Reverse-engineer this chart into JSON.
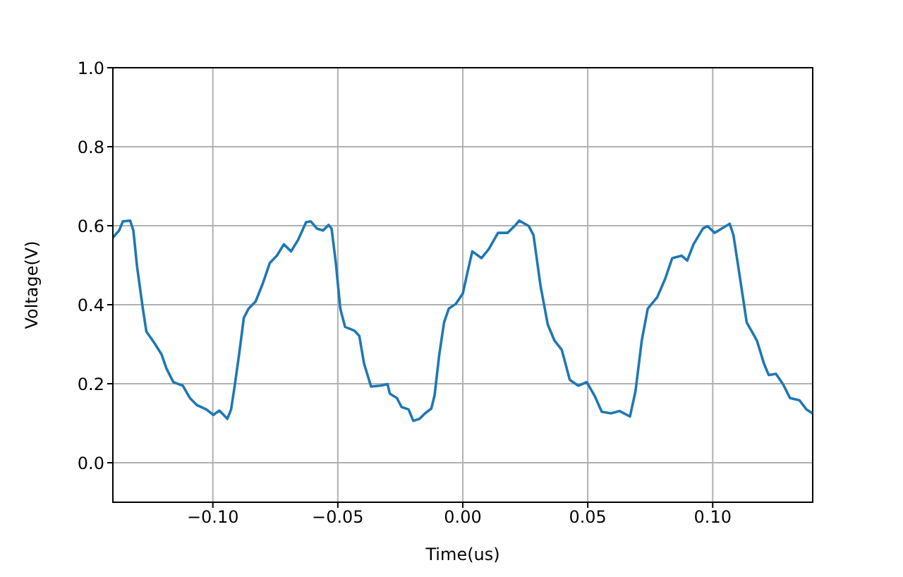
{
  "chart_data": {
    "type": "line",
    "xlabel": "Time(us)",
    "ylabel": "Voltage(V)",
    "xlim": [
      -0.14,
      0.14
    ],
    "xticks": [
      {
        "value": -0.1,
        "label": "−0.10"
      },
      {
        "value": -0.05,
        "label": "−0.05"
      },
      {
        "value": 0,
        "label": "0.00"
      },
      {
        "value": 0.05,
        "label": "0.05"
      },
      {
        "value": 0.1,
        "label": "0.10"
      }
    ],
    "ylim": [
      -0.1,
      1.0
    ],
    "yticks": [
      {
        "value": 0,
        "label": "0.0"
      },
      {
        "value": 0.2,
        "label": "0.2"
      },
      {
        "value": 0.4,
        "label": "0.4"
      },
      {
        "value": 0.6,
        "label": "0.6"
      },
      {
        "value": 0.8,
        "label": "0.8"
      },
      {
        "value": 1,
        "label": "1.0"
      }
    ],
    "grid": true,
    "marker": "none",
    "line_style": "solid",
    "x": [
      -0.14,
      -0.1375,
      -0.136,
      -0.1331,
      -0.1318,
      -0.1303,
      -0.128,
      -0.1266,
      -0.1234,
      -0.1205,
      -0.1186,
      -0.1158,
      -0.112,
      -0.1092,
      -0.1064,
      -0.1026,
      -0.0998,
      -0.0974,
      -0.0942,
      -0.0927,
      -0.0913,
      -0.0895,
      -0.0876,
      -0.0857,
      -0.0829,
      -0.08,
      -0.0772,
      -0.0744,
      -0.0716,
      -0.0687,
      -0.0659,
      -0.0627,
      -0.0608,
      -0.0584,
      -0.0559,
      -0.0537,
      -0.0525,
      -0.0508,
      -0.049,
      -0.0471,
      -0.0433,
      -0.0414,
      -0.0395,
      -0.0367,
      -0.033,
      -0.0301,
      -0.0292,
      -0.0264,
      -0.0245,
      -0.0217,
      -0.0198,
      -0.0173,
      -0.0151,
      -0.0126,
      -0.0113,
      -0.0094,
      -0.0075,
      -0.0056,
      -0.0028,
      0.0,
      0.0019,
      0.0038,
      0.0075,
      0.0104,
      0.0141,
      0.0179,
      0.0207,
      0.0226,
      0.0264,
      0.0283,
      0.0311,
      0.034,
      0.0367,
      0.0396,
      0.0428,
      0.0462,
      0.0496,
      0.0527,
      0.0556,
      0.0593,
      0.0627,
      0.0669,
      0.0691,
      0.0716,
      0.074,
      0.0778,
      0.081,
      0.0838,
      0.0876,
      0.0898,
      0.0923,
      0.0961,
      0.0979,
      0.1008,
      0.1036,
      0.1068,
      0.1083,
      0.1111,
      0.1136,
      0.1177,
      0.1205,
      0.1224,
      0.1253,
      0.1281,
      0.1309,
      0.1347,
      0.1375,
      0.1399
    ],
    "series": [
      {
        "color": "#1f77b4",
        "values": [
          0.57,
          0.588,
          0.611,
          0.613,
          0.588,
          0.495,
          0.39,
          0.332,
          0.303,
          0.274,
          0.239,
          0.204,
          0.195,
          0.164,
          0.146,
          0.135,
          0.121,
          0.132,
          0.111,
          0.135,
          0.193,
          0.274,
          0.367,
          0.39,
          0.408,
          0.454,
          0.506,
          0.524,
          0.553,
          0.535,
          0.564,
          0.609,
          0.611,
          0.593,
          0.588,
          0.602,
          0.593,
          0.506,
          0.39,
          0.344,
          0.334,
          0.321,
          0.251,
          0.193,
          0.195,
          0.199,
          0.175,
          0.164,
          0.141,
          0.135,
          0.106,
          0.111,
          0.125,
          0.137,
          0.17,
          0.274,
          0.355,
          0.39,
          0.402,
          0.428,
          0.483,
          0.535,
          0.518,
          0.541,
          0.582,
          0.582,
          0.599,
          0.613,
          0.599,
          0.576,
          0.448,
          0.35,
          0.309,
          0.286,
          0.21,
          0.195,
          0.204,
          0.17,
          0.129,
          0.125,
          0.131,
          0.117,
          0.181,
          0.309,
          0.39,
          0.419,
          0.466,
          0.518,
          0.524,
          0.512,
          0.553,
          0.593,
          0.599,
          0.582,
          0.593,
          0.605,
          0.576,
          0.46,
          0.355,
          0.309,
          0.251,
          0.222,
          0.225,
          0.199,
          0.164,
          0.158,
          0.135,
          0.125
        ]
      }
    ]
  }
}
